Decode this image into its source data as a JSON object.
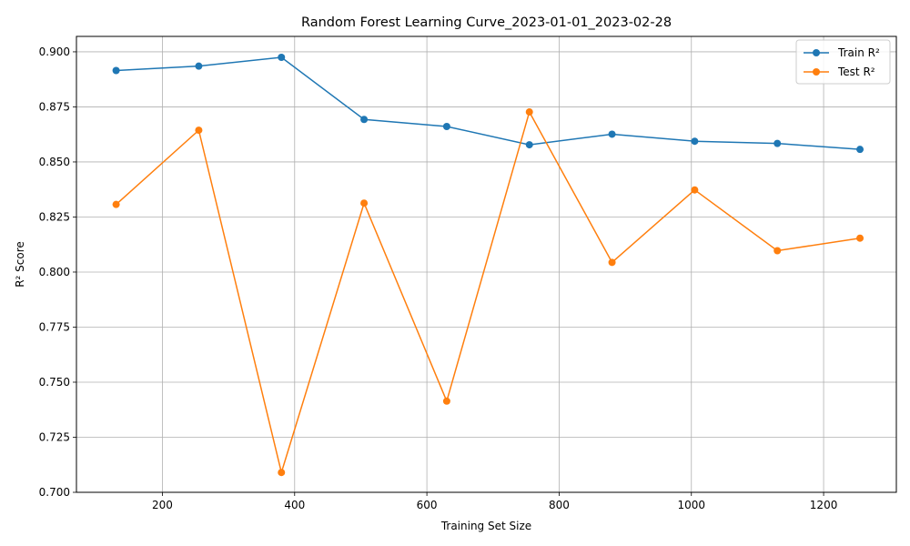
{
  "chart_data": {
    "type": "line",
    "title": "Random Forest Learning Curve_2023-01-01_2023-02-28",
    "xlabel": "Training Set Size",
    "ylabel": "R² Score",
    "xlim": [
      70,
      1310
    ],
    "ylim": [
      0.7,
      0.907
    ],
    "xticks": [
      200,
      400,
      600,
      800,
      1000,
      1200
    ],
    "yticks": [
      0.7,
      0.725,
      0.75,
      0.775,
      0.8,
      0.825,
      0.85,
      0.875,
      0.9
    ],
    "grid": true,
    "legend": "top-right",
    "x": [
      130,
      255,
      380,
      505,
      630,
      755,
      880,
      1005,
      1130,
      1255
    ],
    "series": [
      {
        "name": "Train R²",
        "color": "#1f77b4",
        "marker": "circle",
        "values": [
          0.8915,
          0.8935,
          0.8975,
          0.8693,
          0.8661,
          0.8578,
          0.8626,
          0.8594,
          0.8584,
          0.8557
        ]
      },
      {
        "name": "Test R²",
        "color": "#ff7f0e",
        "marker": "circle",
        "values": [
          0.8307,
          0.8644,
          0.709,
          0.8313,
          0.7414,
          0.8727,
          0.8044,
          0.8373,
          0.8097,
          0.8154
        ]
      }
    ]
  }
}
